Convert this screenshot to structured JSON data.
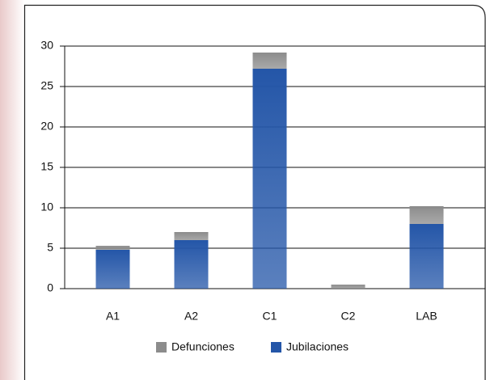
{
  "chart_data": {
    "type": "stacked_bar",
    "categories": [
      "A1",
      "A2",
      "C1",
      "C2",
      "LAB"
    ],
    "series": [
      {
        "name": "Jubilaciones",
        "color": "#2456a8",
        "values": [
          4.8,
          6,
          27.2,
          0,
          8
        ]
      },
      {
        "name": "Defunciones",
        "color": "#8c8c8c",
        "values": [
          0.5,
          1,
          2,
          0.5,
          2.2
        ]
      }
    ],
    "legend_order": [
      1,
      0
    ],
    "ylim": [
      0,
      30
    ],
    "yticks": [
      0,
      5,
      10,
      15,
      20,
      25,
      30
    ],
    "grid": true
  }
}
